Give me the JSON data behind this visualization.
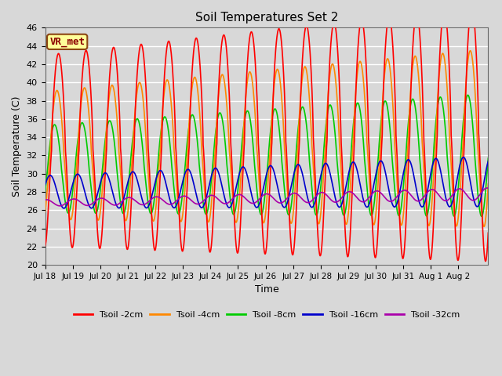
{
  "title": "Soil Temperatures Set 2",
  "xlabel": "Time",
  "ylabel": "Soil Temperature (C)",
  "ylim": [
    20,
    46
  ],
  "yticks": [
    20,
    22,
    24,
    26,
    28,
    30,
    32,
    34,
    36,
    38,
    40,
    42,
    44,
    46
  ],
  "bg_color": "#d8d8d8",
  "plot_bg_color": "#d8d8d8",
  "grid_color": "#ffffff",
  "series": {
    "Tsoil -2cm": {
      "color": "#ff0000",
      "lw": 1.2
    },
    "Tsoil -4cm": {
      "color": "#ff8800",
      "lw": 1.2
    },
    "Tsoil -8cm": {
      "color": "#00cc00",
      "lw": 1.2
    },
    "Tsoil -16cm": {
      "color": "#0000cc",
      "lw": 1.2
    },
    "Tsoil -32cm": {
      "color": "#aa00aa",
      "lw": 1.2
    }
  },
  "annotation": {
    "text": "VR_met",
    "fontsize": 9,
    "color": "#8b0000",
    "bbox_facecolor": "#ffff99",
    "bbox_edgecolor": "#8b4513"
  },
  "n_points": 2000,
  "start_day": 0,
  "end_day": 16.08,
  "xtick_positions": [
    0,
    1,
    2,
    3,
    4,
    5,
    6,
    7,
    8,
    9,
    10,
    11,
    12,
    13,
    14,
    15
  ],
  "xtick_labels": [
    "Jul 18",
    "Jul 19",
    "Jul 20",
    "Jul 21",
    "Jul 22",
    "Jul 23",
    "Jul 24",
    "Jul 25",
    "Jul 26",
    "Jul 27",
    "Jul 28",
    "Jul 29",
    "Jul 30",
    "Jul 31",
    "Aug 1",
    "Aug 2"
  ]
}
